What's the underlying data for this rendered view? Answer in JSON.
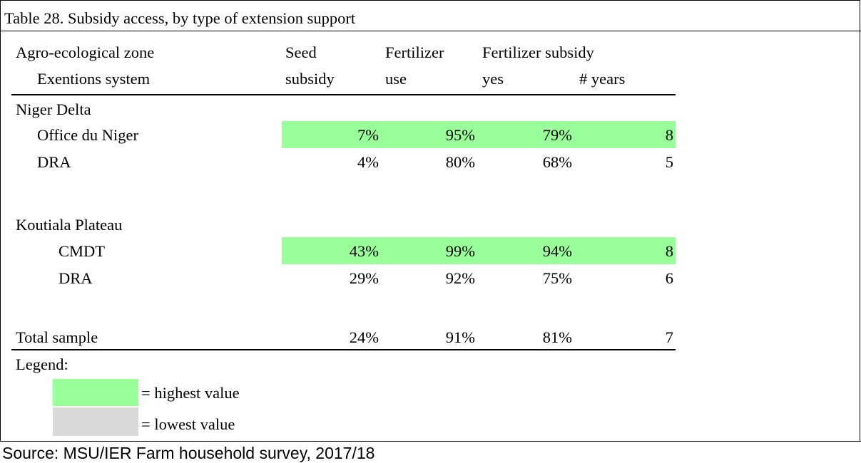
{
  "title": "Table 28. Subsidy access, by type of extension support",
  "header": {
    "row1": {
      "zone": "Agro-ecological zone",
      "seed": "Seed",
      "fert": "Fertilizer",
      "fsub": "Fertilizer subsidy"
    },
    "row2": {
      "system": "Exentions system",
      "seed": "subsidy",
      "fert": "use",
      "yes": "yes",
      "years": "# years"
    }
  },
  "groups": [
    {
      "name": "Niger Delta",
      "rows": [
        {
          "label": "Office du Niger",
          "seed": "7%",
          "fert": "95%",
          "yes": "79%",
          "years": "8",
          "highlight": "highest"
        },
        {
          "label": "DRA",
          "seed": "4%",
          "fert": "80%",
          "yes": "68%",
          "years": "5",
          "highlight": "none"
        }
      ]
    },
    {
      "name": "Koutiala Plateau",
      "rows": [
        {
          "label": "CMDT",
          "seed": "43%",
          "fert": "99%",
          "yes": "94%",
          "years": "8",
          "highlight": "highest"
        },
        {
          "label": "DRA",
          "seed": "29%",
          "fert": "92%",
          "yes": "75%",
          "years": "6",
          "highlight": "none"
        }
      ]
    }
  ],
  "total": {
    "label": "Total sample",
    "seed": "24%",
    "fert": "91%",
    "yes": "81%",
    "years": "7"
  },
  "legend": {
    "title": "Legend:",
    "highest": "= highest value",
    "lowest": "= lowest value",
    "highest_color": "#99ff99",
    "lowest_color": "#d9d9d9"
  },
  "source": "Source: MSU/IER Farm household survey, 2017/18"
}
